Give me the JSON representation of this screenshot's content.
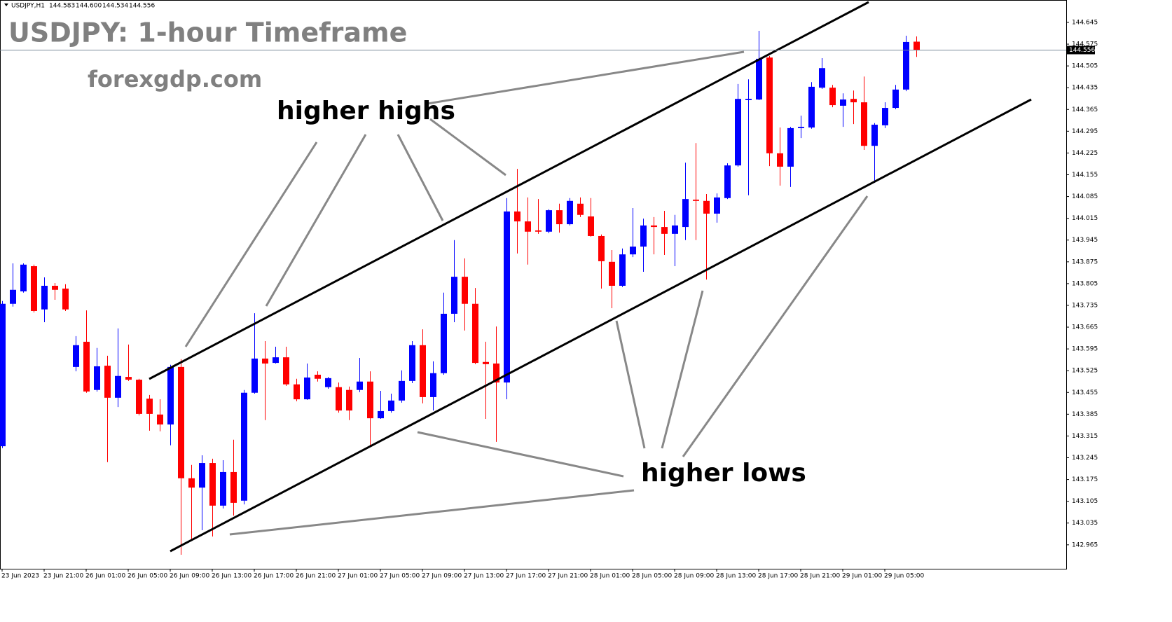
{
  "chart_data": {
    "type": "candlestick",
    "quote": {
      "symbol": "USDJPY,H1",
      "ohlc_labels": [
        "144.583",
        "144.600",
        "144.534",
        "144.556"
      ]
    },
    "title": "USDJPY: 1-hour Timeframe",
    "subtitle": "forexgdp.com",
    "annotations": [
      "higher highs",
      "higher lows"
    ],
    "categories": [
      "23 Jun 2023",
      null,
      null,
      null,
      "23 Jun 21:00",
      null,
      null,
      null,
      "26 Jun 01:00",
      null,
      null,
      null,
      "26 Jun 05:00",
      null,
      null,
      null,
      "26 Jun 09:00",
      null,
      null,
      null,
      "26 Jun 13:00",
      null,
      null,
      null,
      "26 Jun 17:00",
      null,
      null,
      null,
      "26 Jun 21:00",
      null,
      null,
      null,
      "27 Jun 01:00",
      null,
      null,
      null,
      "27 Jun 05:00",
      null,
      null,
      null,
      "27 Jun 09:00",
      null,
      null,
      null,
      "27 Jun 13:00",
      null,
      null,
      null,
      "27 Jun 17:00",
      null,
      null,
      null,
      "27 Jun 21:00",
      null,
      null,
      null,
      "28 Jun 01:00",
      null,
      null,
      null,
      "28 Jun 05:00",
      null,
      null,
      null,
      "28 Jun 09:00",
      null,
      null,
      null,
      "28 Jun 13:00",
      null,
      null,
      null,
      "28 Jun 17:00",
      null,
      null,
      null,
      "28 Jun 21:00",
      null,
      null,
      null,
      "29 Jun 01:00",
      null,
      null,
      null,
      "29 Jun 05:00",
      null,
      null,
      null
    ],
    "open": [
      143.282,
      143.74,
      143.78,
      143.861,
      143.722,
      143.798,
      143.789,
      143.537,
      143.618,
      143.463,
      143.541,
      143.438,
      143.505,
      143.496,
      143.435,
      143.384,
      143.352,
      143.537,
      143.179,
      143.149,
      143.228,
      143.091,
      143.199,
      143.107,
      143.454,
      143.564,
      143.55,
      143.568,
      143.481,
      143.433,
      143.512,
      143.472,
      143.472,
      143.463,
      143.463,
      143.49,
      143.372,
      143.395,
      143.429,
      143.492,
      143.607,
      143.44,
      143.517,
      143.708,
      143.827,
      143.74,
      143.553,
      143.548,
      143.487,
      144.037,
      144.005,
      143.976,
      143.972,
      144.041,
      143.996,
      144.062,
      144.021,
      143.958,
      143.875,
      143.798,
      143.899,
      143.924,
      143.992,
      143.987,
      143.965,
      143.987,
      144.075,
      144.071,
      144.03,
      144.08,
      144.185,
      144.395,
      144.397,
      144.532,
      144.224,
      144.181,
      144.305,
      144.307,
      144.435,
      144.435,
      144.377,
      144.399,
      144.388,
      144.248,
      144.314,
      144.37,
      144.429,
      144.583
    ],
    "high": [
      143.749,
      143.87,
      143.87,
      143.866,
      143.825,
      143.807,
      143.803,
      143.636,
      143.719,
      143.598,
      143.573,
      143.661,
      143.609,
      143.499,
      143.447,
      143.433,
      143.544,
      143.562,
      143.222,
      143.253,
      143.242,
      143.237,
      143.303,
      143.463,
      143.71,
      143.62,
      143.602,
      143.602,
      143.499,
      143.548,
      143.523,
      143.505,
      143.487,
      143.474,
      143.566,
      143.523,
      143.46,
      143.451,
      143.526,
      143.62,
      143.658,
      143.555,
      143.776,
      143.945,
      143.886,
      143.791,
      143.618,
      143.667,
      144.08,
      144.174,
      144.082,
      144.077,
      144.044,
      144.062,
      144.08,
      144.082,
      144.08,
      143.963,
      143.913,
      143.918,
      144.048,
      144.014,
      144.019,
      144.039,
      144.026,
      144.194,
      144.257,
      144.093,
      144.095,
      144.192,
      144.447,
      144.462,
      144.618,
      144.537,
      144.307,
      144.309,
      144.345,
      144.453,
      144.53,
      144.444,
      144.417,
      144.426,
      144.471,
      144.321,
      144.388,
      144.444,
      144.602,
      144.6
    ],
    "low": [
      143.276,
      143.731,
      143.776,
      143.712,
      143.681,
      143.753,
      143.717,
      143.523,
      143.454,
      143.458,
      143.231,
      143.408,
      143.492,
      143.381,
      143.332,
      143.33,
      143.285,
      142.933,
      142.981,
      143.012,
      142.992,
      143.082,
      143.059,
      143.095,
      143.451,
      143.366,
      143.548,
      143.476,
      143.427,
      143.431,
      143.49,
      143.467,
      143.39,
      143.366,
      143.456,
      143.285,
      143.37,
      143.39,
      143.422,
      143.485,
      143.42,
      143.397,
      143.512,
      143.681,
      143.654,
      143.546,
      143.37,
      143.296,
      143.433,
      143.902,
      143.866,
      143.965,
      143.967,
      143.969,
      143.992,
      144.019,
      143.956,
      143.789,
      143.726,
      143.794,
      143.89,
      143.843,
      143.899,
      143.897,
      143.861,
      143.945,
      143.945,
      143.818,
      144.001,
      144.077,
      144.181,
      144.089,
      144.395,
      144.183,
      144.12,
      144.116,
      144.273,
      144.303,
      144.431,
      144.372,
      144.309,
      144.318,
      144.235,
      144.129,
      144.305,
      144.366,
      144.424,
      144.534
    ],
    "close": [
      143.74,
      143.785,
      143.866,
      143.717,
      143.798,
      143.785,
      143.722,
      143.607,
      143.458,
      143.539,
      143.438,
      143.508,
      143.496,
      143.386,
      143.386,
      143.352,
      143.537,
      143.179,
      143.149,
      143.228,
      143.091,
      143.199,
      143.1,
      143.454,
      143.564,
      143.548,
      143.568,
      143.481,
      143.433,
      143.503,
      143.499,
      143.501,
      143.397,
      143.397,
      143.49,
      143.372,
      143.395,
      143.429,
      143.492,
      143.607,
      143.44,
      143.517,
      143.708,
      143.827,
      143.74,
      143.55,
      143.546,
      143.487,
      144.037,
      144.005,
      143.972,
      143.972,
      144.041,
      143.996,
      144.071,
      144.026,
      143.958,
      143.877,
      143.798,
      143.899,
      143.924,
      143.992,
      143.987,
      143.965,
      143.992,
      144.077,
      144.071,
      144.03,
      144.082,
      144.185,
      144.399,
      144.399,
      144.528,
      144.224,
      144.181,
      144.305,
      144.309,
      144.438,
      144.498,
      144.379,
      144.397,
      144.388,
      144.248,
      144.316,
      144.37,
      144.429,
      144.582,
      144.556
    ],
    "up_color": "#0000ff",
    "down_color": "#ff0000",
    "ylim": [
      142.888,
      144.717
    ],
    "yticks": [
      144.645,
      144.575,
      144.505,
      144.435,
      144.365,
      144.295,
      144.225,
      144.155,
      144.085,
      144.015,
      143.945,
      143.875,
      143.805,
      143.735,
      143.665,
      143.595,
      143.525,
      143.455,
      143.385,
      143.315,
      143.245,
      143.175,
      143.105,
      143.035,
      142.965
    ],
    "grid": false
  }
}
